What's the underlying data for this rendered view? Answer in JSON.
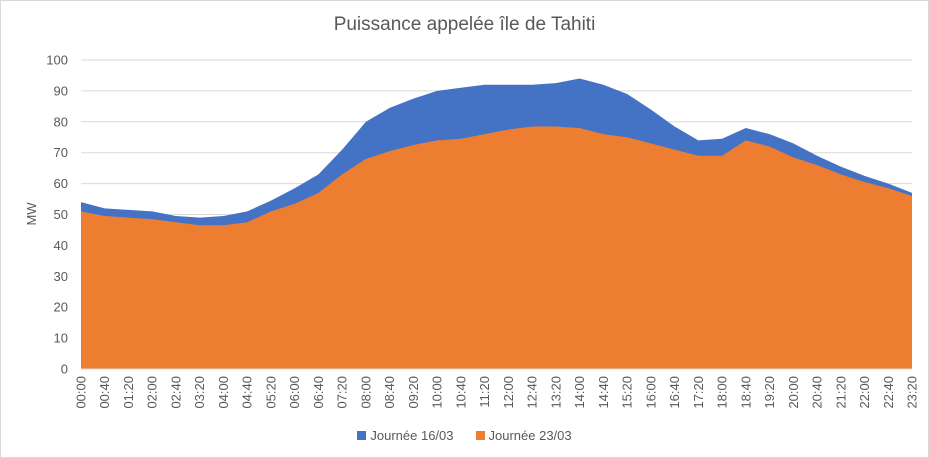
{
  "chart_data": {
    "type": "area",
    "title": "Puissance appelée île de Tahiti",
    "xlabel": "",
    "ylabel": "MW",
    "ylim": [
      0,
      100
    ],
    "yticks": [
      0,
      10,
      20,
      30,
      40,
      50,
      60,
      70,
      80,
      90,
      100
    ],
    "grid": true,
    "legend_position": "bottom",
    "x": [
      "00:00",
      "00:40",
      "01:20",
      "02:00",
      "02:40",
      "03:20",
      "04:00",
      "04:40",
      "05:20",
      "06:00",
      "06:40",
      "07:20",
      "08:00",
      "08:40",
      "09:20",
      "10:00",
      "10:40",
      "11:20",
      "12:00",
      "12:40",
      "13:20",
      "14:00",
      "14:40",
      "15:20",
      "16:00",
      "16:40",
      "17:20",
      "18:00",
      "18:40",
      "19:20",
      "20:00",
      "20:40",
      "21:20",
      "22:00",
      "22:40",
      "23:20"
    ],
    "series": [
      {
        "name": "Journée 16/03",
        "color": "#4472C4",
        "values": [
          54,
          52,
          51.5,
          51,
          49.5,
          49,
          49.5,
          51,
          54.5,
          58.5,
          63,
          71,
          80,
          84.5,
          87.5,
          90,
          91,
          92,
          92,
          92,
          92.5,
          94,
          92,
          89,
          84,
          78.5,
          74,
          74.5,
          78,
          76,
          73,
          69,
          65.5,
          62.5,
          60,
          57
        ]
      },
      {
        "name": "Journée 23/03",
        "color": "#ED7D31",
        "values": [
          51,
          49.5,
          49,
          48.5,
          47.5,
          46.5,
          46.5,
          47.5,
          51,
          53.5,
          57,
          63,
          68,
          70.5,
          72.5,
          74,
          74.5,
          76,
          77.5,
          78.5,
          78.5,
          78,
          76,
          75,
          73,
          71,
          69,
          69,
          74,
          72,
          68.5,
          66,
          63,
          60.5,
          58.5,
          56
        ]
      }
    ]
  }
}
